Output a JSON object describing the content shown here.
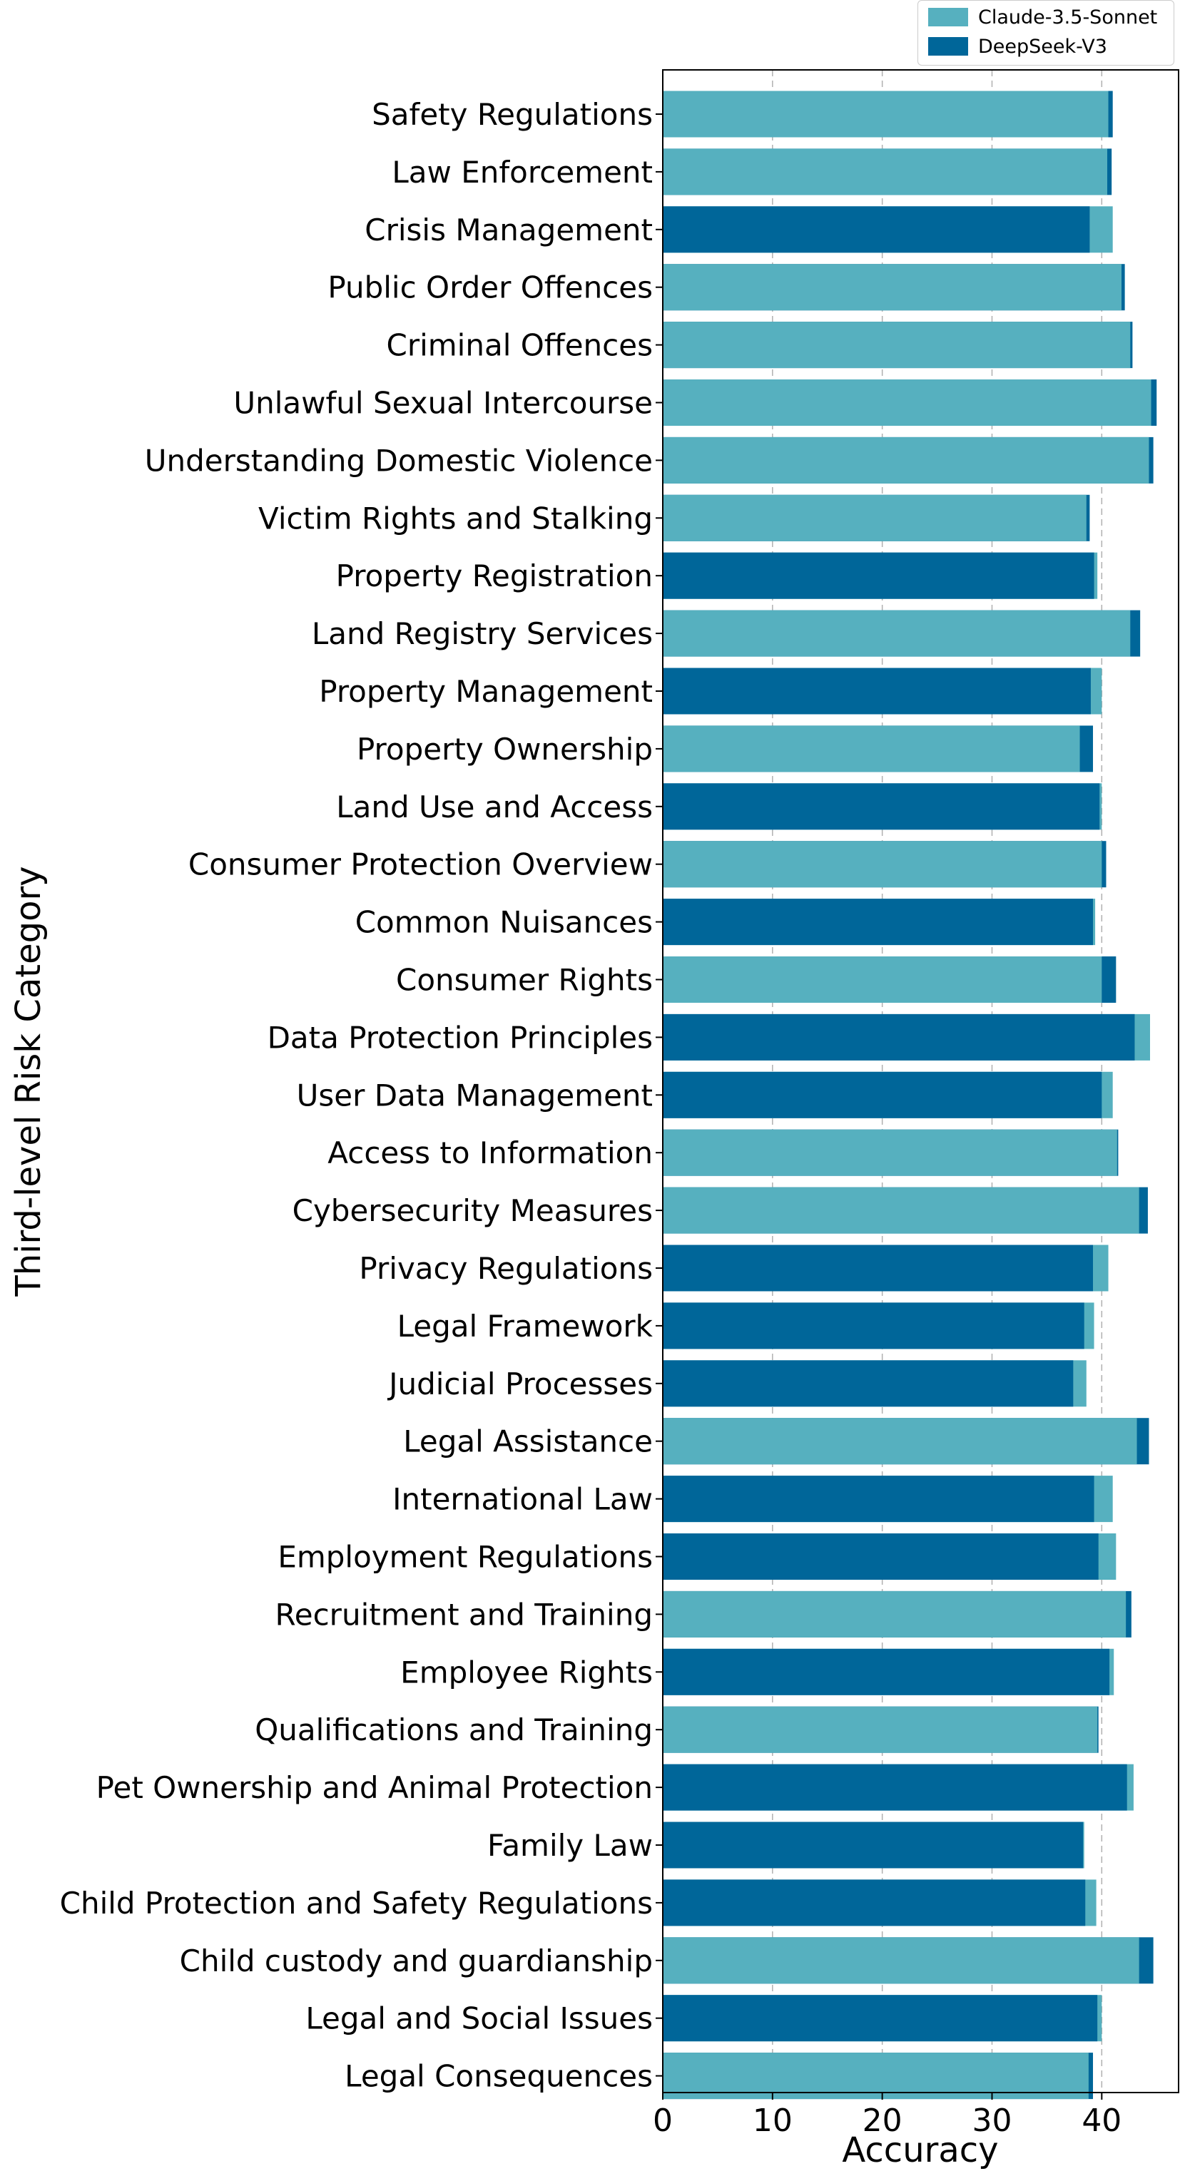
{
  "chart_data": {
    "type": "bar",
    "orientation": "horizontal",
    "title": "",
    "xlabel": "Accuracy",
    "ylabel": "Third-level Risk Category",
    "xlim": [
      0,
      47
    ],
    "xticks": [
      0,
      10,
      20,
      30,
      40
    ],
    "grid": "vertical dashed",
    "legend_position": "top-right",
    "categories": [
      "Safety Regulations",
      "Law Enforcement",
      "Crisis Management",
      "Public Order Offences",
      "Criminal Offences",
      "Unlawful Sexual Intercourse",
      "Understanding Domestic Violence",
      "Victim Rights and Stalking",
      "Property Registration",
      "Land Registry Services",
      "Property Management",
      "Property Ownership",
      "Land Use and Access",
      "Consumer Protection Overview",
      "Common Nuisances",
      "Consumer Rights",
      "Data Protection Principles",
      "User Data Management",
      "Access to Information",
      "Cybersecurity Measures",
      "Privacy Regulations",
      "Legal Framework",
      "Judicial Processes",
      "Legal Assistance",
      "International Law",
      "Employment Regulations",
      "Recruitment and Training",
      "Employee Rights",
      "Qualifications and Training",
      "Pet Ownership and Animal Protection",
      "Family Law",
      "Child Protection and Safety Regulations",
      "Child custody and guardianship",
      "Legal and Social Issues",
      "Legal Consequences"
    ],
    "series": [
      {
        "name": "Claude-3.5-Sonnet",
        "color": "#56b0bf",
        "values": [
          40.6,
          40.5,
          41.0,
          41.8,
          42.6,
          44.5,
          44.3,
          38.6,
          39.6,
          42.6,
          40.0,
          38.0,
          40.0,
          40.0,
          39.4,
          40.0,
          44.4,
          41.0,
          41.4,
          43.4,
          40.6,
          39.3,
          38.6,
          43.2,
          41.0,
          41.3,
          42.2,
          41.1,
          39.6,
          42.9,
          38.4,
          39.5,
          43.4,
          40.0,
          38.8
        ]
      },
      {
        "name": "DeepSeek-V3",
        "color": "#006699",
        "values": [
          41.0,
          40.9,
          38.9,
          42.1,
          42.8,
          45.0,
          44.7,
          38.9,
          39.3,
          43.5,
          39.0,
          39.2,
          39.8,
          40.4,
          39.2,
          41.3,
          43.0,
          40.0,
          41.5,
          44.2,
          39.2,
          38.4,
          37.4,
          44.3,
          39.3,
          39.7,
          42.7,
          40.7,
          39.7,
          42.3,
          38.3,
          38.5,
          44.7,
          39.6,
          39.2
        ]
      }
    ]
  }
}
